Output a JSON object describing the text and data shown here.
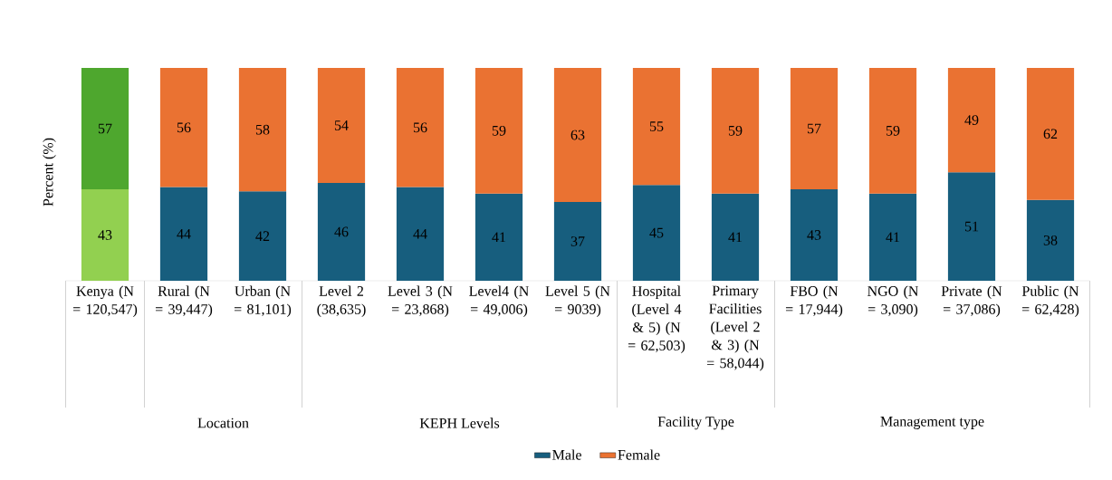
{
  "chart_data": {
    "type": "bar",
    "stacked": true,
    "ylabel": "Percent (%)",
    "categories": [
      "Kenya (N = 120,547)",
      "Rural (N = 39,447)",
      "Urban (N = 81,101)",
      "Level 2 (38,635)",
      "Level 3 (N = 23,868)",
      "Level4 (N = 49,006)",
      "Level 5 (N = 9039)",
      "Hospital (Level 4 & 5) (N = 62,503)",
      "Primary Facilities (Level 2 & 3) (N = 58,044)",
      "FBO (N = 17,944)",
      "NGO (N = 3,090)",
      "Private (N = 37,086)",
      "Public (N = 62,428)"
    ],
    "series": [
      {
        "name": "Male",
        "color": "#175e7e",
        "colors": [
          "#92d050",
          "#175e7e",
          "#175e7e",
          "#175e7e",
          "#175e7e",
          "#175e7e",
          "#175e7e",
          "#175e7e",
          "#175e7e",
          "#175e7e",
          "#175e7e",
          "#175e7e",
          "#175e7e"
        ],
        "values": [
          43,
          44,
          42,
          46,
          44,
          41,
          37,
          45,
          41,
          43,
          41,
          51,
          38
        ]
      },
      {
        "name": "Female",
        "color": "#ea7232",
        "colors": [
          "#4ea72e",
          "#ea7232",
          "#ea7232",
          "#ea7232",
          "#ea7232",
          "#ea7232",
          "#ea7232",
          "#ea7232",
          "#ea7232",
          "#ea7232",
          "#ea7232",
          "#ea7232",
          "#ea7232"
        ],
        "values": [
          57,
          56,
          58,
          54,
          56,
          59,
          63,
          55,
          59,
          57,
          59,
          49,
          62
        ]
      }
    ],
    "data_labels": true,
    "legend": "bottom",
    "tick_labels": "x",
    "annotations": [
      "Location",
      "KEPH Levels",
      "Facility Type",
      "Management type"
    ]
  }
}
